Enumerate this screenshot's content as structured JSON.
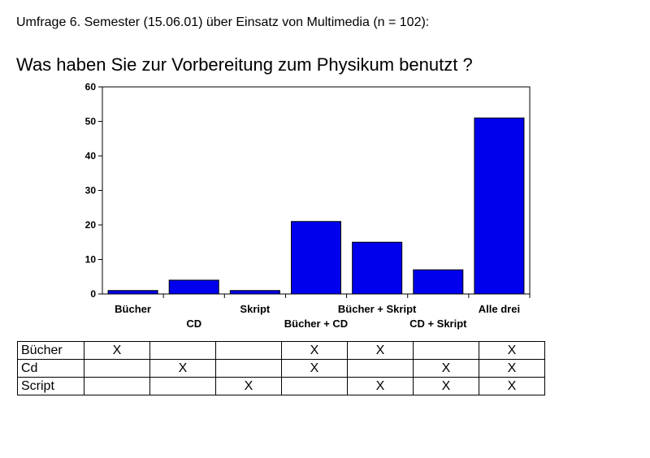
{
  "header": {
    "subtitle": "Umfrage 6. Semester (15.06.01) über Einsatz von Multimedia (n = 102):",
    "title": "Was haben Sie zur Vorbereitung zum Physikum benutzt ?"
  },
  "chart_data": {
    "type": "bar",
    "title": "Was haben Sie zur Vorbereitung zum Physikum benutzt ?",
    "categories": [
      "Bücher",
      "CD",
      "Skript",
      "Bücher + CD",
      "Bücher + Skript",
      "CD + Skript",
      "Alle drei"
    ],
    "values": [
      1,
      4,
      1,
      21,
      15,
      7,
      51
    ],
    "ylim": [
      0,
      60
    ],
    "yticks": [
      0,
      10,
      20,
      30,
      40,
      50,
      60
    ],
    "bar_color": "#0000ee",
    "grid": false
  },
  "matrix": {
    "rows": [
      {
        "label": "Bücher",
        "marks": [
          "X",
          "",
          "",
          "X",
          "X",
          "",
          "X"
        ]
      },
      {
        "label": "Cd",
        "marks": [
          "",
          "X",
          "",
          "X",
          "",
          "X",
          "X"
        ]
      },
      {
        "label": "Script",
        "marks": [
          "",
          "",
          "X",
          "",
          "X",
          "X",
          "X"
        ]
      }
    ]
  }
}
